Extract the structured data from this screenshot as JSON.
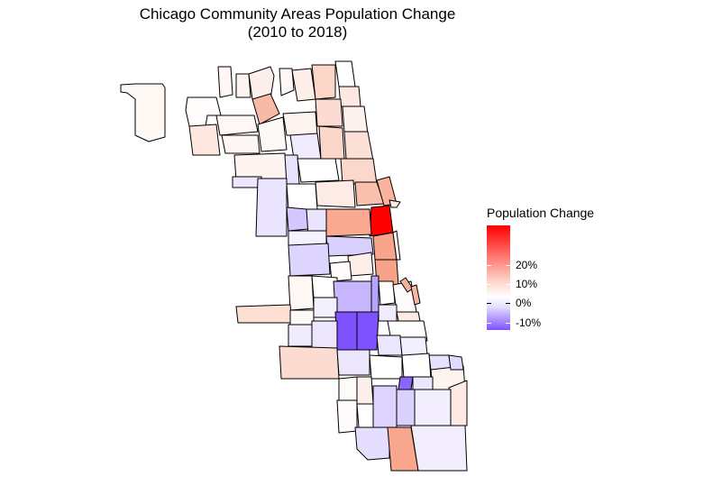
{
  "title": {
    "line1": "Chicago Community Areas Population Change",
    "line2": "(2010 to 2018)"
  },
  "legend": {
    "title": "Population Change",
    "ticks": [
      "20%",
      "10%",
      "0%",
      "-10%"
    ]
  },
  "colors": {
    "high": "#ff0000",
    "mid": "#ffffff",
    "low": "#7f52ff",
    "border": "#000000"
  }
}
